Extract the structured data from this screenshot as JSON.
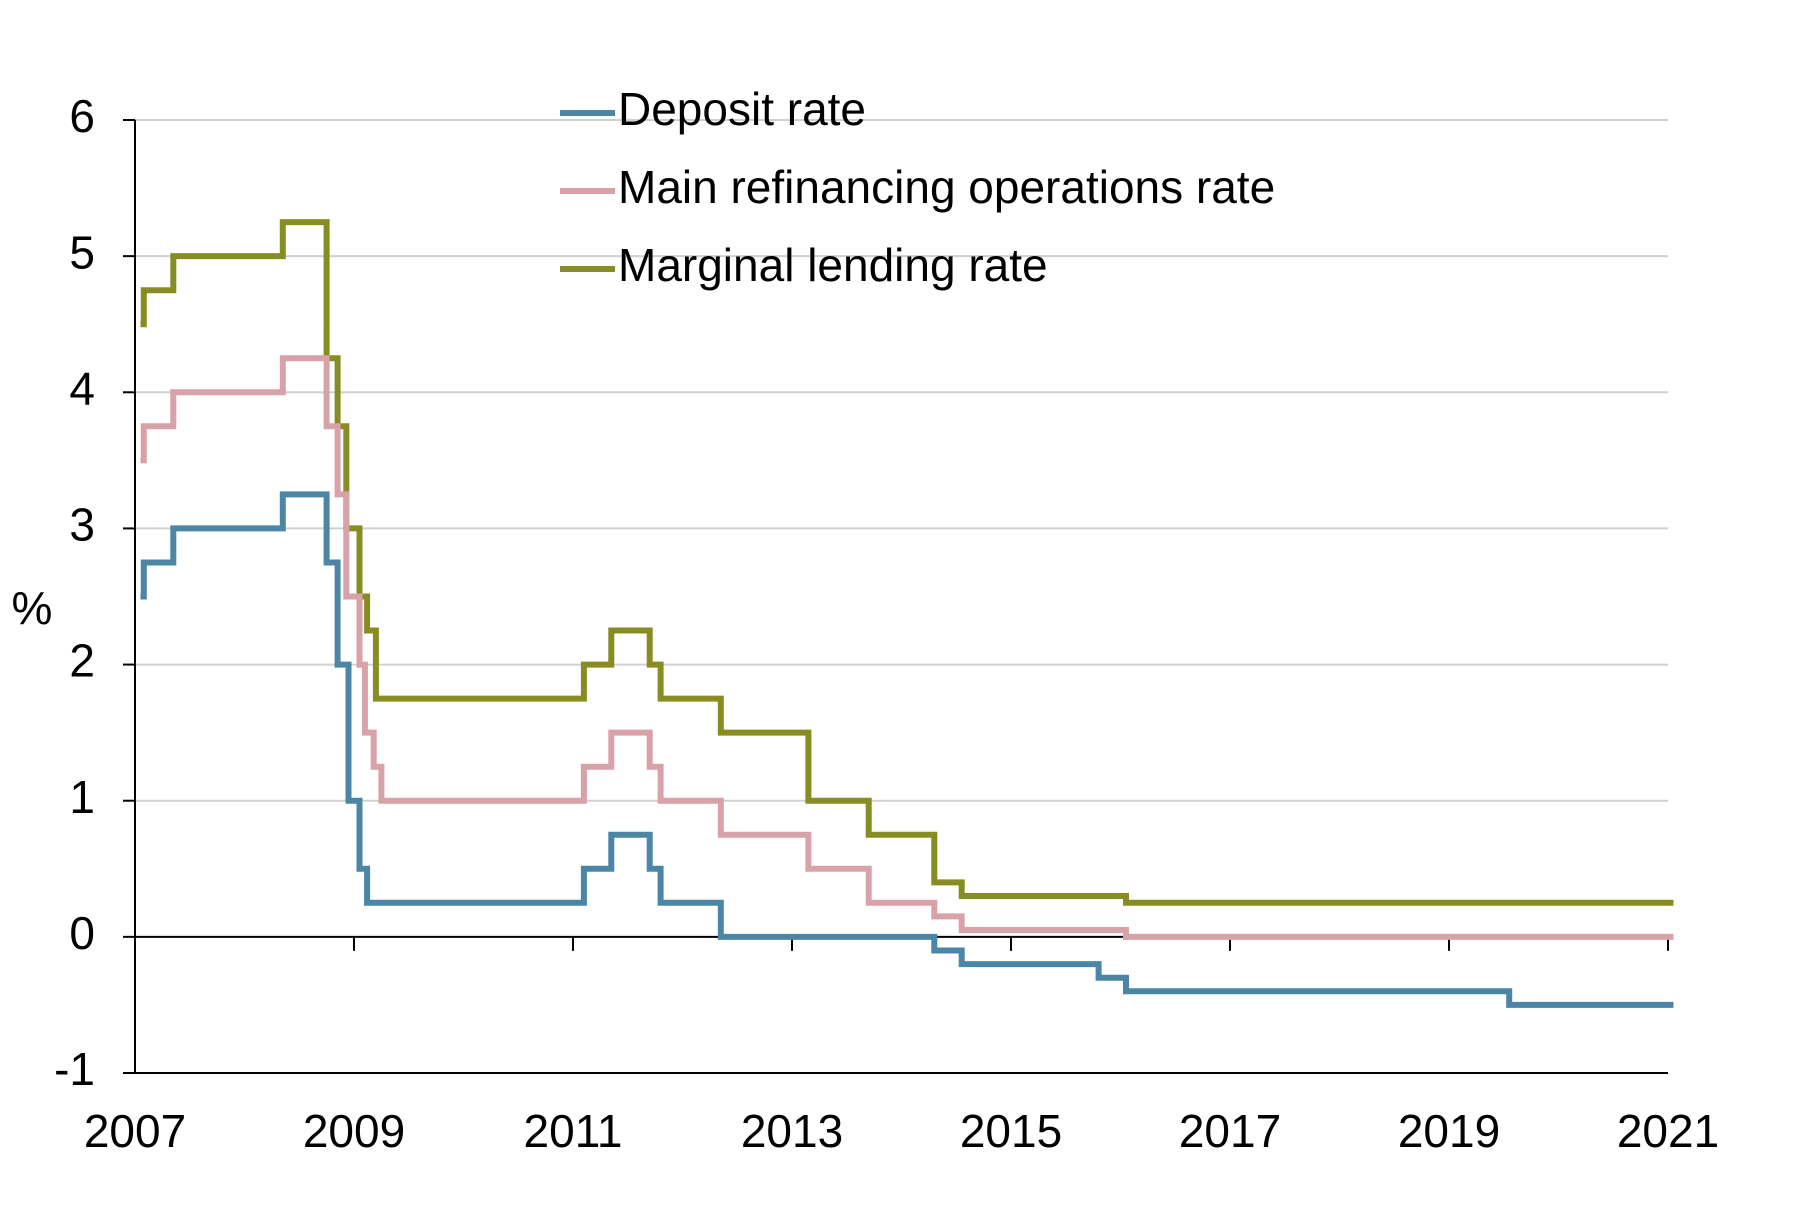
{
  "chart_data": {
    "type": "line",
    "title": "",
    "xlabel": "",
    "ylabel": "%",
    "xlim": [
      2007,
      2021
    ],
    "ylim": [
      -1,
      6
    ],
    "x_ticks": [
      "2007",
      "2009",
      "2011",
      "2013",
      "2015",
      "2017",
      "2019",
      "2021"
    ],
    "y_ticks": [
      "6",
      "5",
      "4",
      "3",
      "2",
      "1",
      "0",
      "-1"
    ],
    "grid": "horizontal",
    "legend_position": "top-center",
    "series": [
      {
        "name": "Deposit rate",
        "color": "#4b86a6",
        "step": true,
        "points": [
          [
            2007.05,
            2.5
          ],
          [
            2007.08,
            2.75
          ],
          [
            2007.35,
            3.0
          ],
          [
            2008.35,
            3.25
          ],
          [
            2008.65,
            3.25
          ],
          [
            2008.75,
            2.75
          ],
          [
            2008.85,
            2.0
          ],
          [
            2008.95,
            1.0
          ],
          [
            2009.05,
            0.5
          ],
          [
            2009.12,
            0.25
          ],
          [
            2011.1,
            0.5
          ],
          [
            2011.35,
            0.75
          ],
          [
            2011.7,
            0.5
          ],
          [
            2011.8,
            0.25
          ],
          [
            2012.35,
            0.0
          ],
          [
            2014.3,
            -0.1
          ],
          [
            2014.55,
            -0.2
          ],
          [
            2015.8,
            -0.3
          ],
          [
            2016.05,
            -0.4
          ],
          [
            2019.55,
            -0.5
          ],
          [
            2021.05,
            -0.5
          ]
        ]
      },
      {
        "name": "Main refinancing operations rate",
        "color": "#d9a1a8",
        "step": true,
        "points": [
          [
            2007.05,
            3.5
          ],
          [
            2007.08,
            3.75
          ],
          [
            2007.35,
            4.0
          ],
          [
            2008.35,
            4.25
          ],
          [
            2008.65,
            4.25
          ],
          [
            2008.75,
            3.75
          ],
          [
            2008.85,
            3.25
          ],
          [
            2008.93,
            2.5
          ],
          [
            2009.05,
            2.0
          ],
          [
            2009.1,
            1.5
          ],
          [
            2009.18,
            1.25
          ],
          [
            2009.25,
            1.0
          ],
          [
            2011.1,
            1.25
          ],
          [
            2011.35,
            1.5
          ],
          [
            2011.7,
            1.25
          ],
          [
            2011.8,
            1.0
          ],
          [
            2012.35,
            0.75
          ],
          [
            2013.15,
            0.5
          ],
          [
            2013.7,
            0.25
          ],
          [
            2014.3,
            0.15
          ],
          [
            2014.55,
            0.05
          ],
          [
            2016.05,
            0.0
          ],
          [
            2021.05,
            0.0
          ]
        ]
      },
      {
        "name": "Marginal lending rate",
        "color": "#878d22",
        "step": true,
        "points": [
          [
            2007.05,
            4.5
          ],
          [
            2007.08,
            4.75
          ],
          [
            2007.35,
            5.0
          ],
          [
            2008.35,
            5.25
          ],
          [
            2008.65,
            5.25
          ],
          [
            2008.75,
            4.25
          ],
          [
            2008.85,
            3.75
          ],
          [
            2008.93,
            3.0
          ],
          [
            2009.05,
            2.5
          ],
          [
            2009.12,
            2.25
          ],
          [
            2009.2,
            1.75
          ],
          [
            2011.1,
            2.0
          ],
          [
            2011.35,
            2.25
          ],
          [
            2011.7,
            2.0
          ],
          [
            2011.8,
            1.75
          ],
          [
            2012.35,
            1.5
          ],
          [
            2013.15,
            1.0
          ],
          [
            2013.7,
            0.75
          ],
          [
            2014.3,
            0.4
          ],
          [
            2014.55,
            0.3
          ],
          [
            2016.05,
            0.25
          ],
          [
            2021.05,
            0.25
          ]
        ]
      }
    ]
  }
}
